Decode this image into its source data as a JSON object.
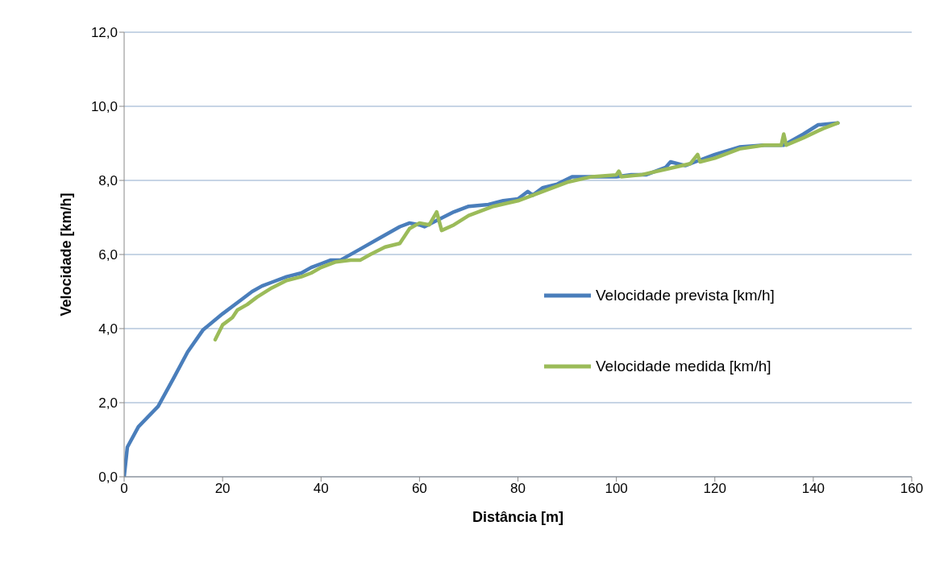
{
  "chart_data": {
    "type": "line",
    "xlabel": "Distância [m]",
    "ylabel": "Velocidade [km/h]",
    "xlim": [
      0,
      160
    ],
    "xticks": [
      0,
      20,
      40,
      60,
      80,
      100,
      120,
      140,
      160
    ],
    "ylim": [
      0,
      12
    ],
    "yticks": [
      {
        "value": 0,
        "label": "0,0"
      },
      {
        "value": 2,
        "label": "2,0"
      },
      {
        "value": 4,
        "label": "4,0"
      },
      {
        "value": 6,
        "label": "6,0"
      },
      {
        "value": 8,
        "label": "8,0"
      },
      {
        "value": 10,
        "label": "10,0"
      },
      {
        "value": 12,
        "label": "12,0"
      }
    ],
    "grid": "y",
    "legend": "right",
    "marker": "none",
    "line_style": "solid",
    "series": [
      {
        "name": "Velocidade prevista [km/h]",
        "color": "#4a7ebb",
        "x": [
          0,
          0.65,
          2.9,
          6.9,
          10,
          12.9,
          16,
          20,
          24,
          26,
          28,
          30,
          33,
          36,
          38,
          40,
          42,
          44,
          48,
          52,
          56,
          58,
          60,
          61,
          64,
          67,
          70,
          74,
          77,
          80,
          82,
          83,
          85,
          88,
          91,
          95,
          100,
          103,
          106,
          110,
          111,
          114,
          116,
          120,
          125,
          130,
          134,
          138,
          141,
          145
        ],
        "values": [
          0,
          0.8,
          1.35,
          1.9,
          2.65,
          3.37,
          3.96,
          4.4,
          4.8,
          5.0,
          5.15,
          5.25,
          5.4,
          5.5,
          5.65,
          5.75,
          5.85,
          5.85,
          6.15,
          6.45,
          6.75,
          6.85,
          6.8,
          6.75,
          6.95,
          7.15,
          7.3,
          7.35,
          7.45,
          7.5,
          7.7,
          7.6,
          7.8,
          7.9,
          8.1,
          8.1,
          8.1,
          8.15,
          8.15,
          8.35,
          8.5,
          8.4,
          8.5,
          8.7,
          8.9,
          8.95,
          8.95,
          9.25,
          9.5,
          9.55
        ]
      },
      {
        "name": "Velocidade medida [km/h]",
        "color": "#9bbb59",
        "x": [
          18.5,
          20,
          22,
          23,
          25,
          27,
          30,
          33,
          36,
          38,
          40,
          43,
          46,
          48,
          50,
          53,
          56,
          58,
          60,
          62,
          63.5,
          64.5,
          67,
          70,
          75,
          80,
          85,
          90,
          95,
          100,
          100.5,
          101,
          105,
          110,
          115,
          116.5,
          117,
          120,
          125,
          130,
          133.5,
          134,
          134.5,
          138,
          142,
          145
        ],
        "values": [
          3.7,
          4.1,
          4.3,
          4.5,
          4.65,
          4.85,
          5.1,
          5.3,
          5.4,
          5.5,
          5.65,
          5.8,
          5.85,
          5.85,
          6.0,
          6.2,
          6.3,
          6.7,
          6.85,
          6.8,
          7.15,
          6.65,
          6.8,
          7.05,
          7.3,
          7.45,
          7.7,
          7.95,
          8.1,
          8.15,
          8.25,
          8.1,
          8.15,
          8.3,
          8.45,
          8.7,
          8.5,
          8.6,
          8.85,
          8.95,
          8.95,
          9.25,
          8.95,
          9.15,
          9.4,
          9.55
        ]
      }
    ]
  }
}
